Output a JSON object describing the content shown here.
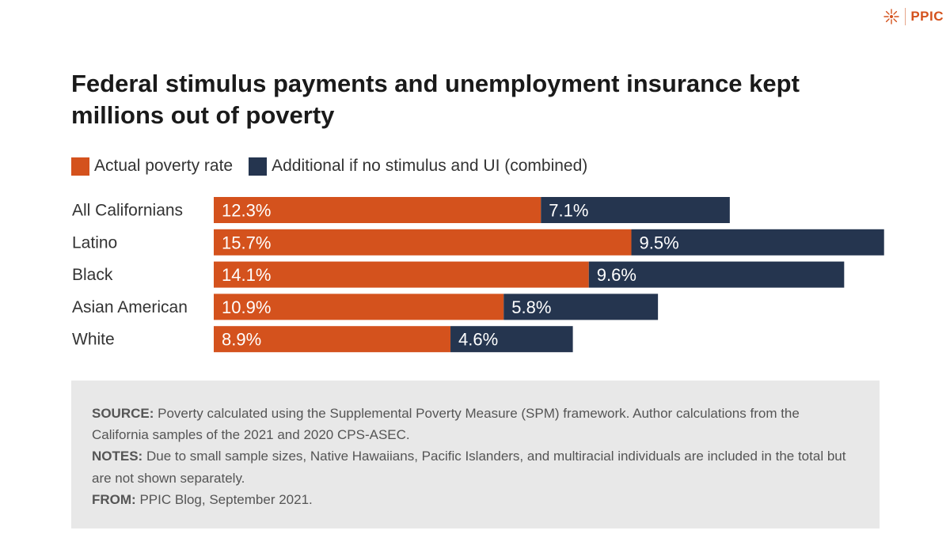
{
  "brand": {
    "name": "PPIC",
    "color": "#d4521d"
  },
  "title": "Federal stimulus payments and unemployment insurance kept millions out of poverty",
  "legend": {
    "actual": {
      "label": "Actual poverty rate",
      "color": "#d4521d"
    },
    "additional": {
      "label": "Additional if no stimulus and UI (combined)",
      "color": "#25354f"
    }
  },
  "chart_data": {
    "type": "bar",
    "orientation": "horizontal",
    "stacked": true,
    "categories": [
      "All Californians",
      "Latino",
      "Black",
      "Asian American",
      "White"
    ],
    "series": [
      {
        "name": "Actual poverty rate",
        "values": [
          12.3,
          15.7,
          14.1,
          10.9,
          8.9
        ],
        "labels": [
          "12.3%",
          "15.7%",
          "14.1%",
          "10.9%",
          "8.9%"
        ],
        "color": "#d4521d"
      },
      {
        "name": "Additional if no stimulus and UI (combined)",
        "values": [
          7.1,
          9.5,
          9.6,
          5.8,
          4.6
        ],
        "labels": [
          "7.1%",
          "9.5%",
          "9.6%",
          "5.8%",
          "4.6%"
        ],
        "color": "#25354f"
      }
    ],
    "title": "Federal stimulus payments and unemployment insurance kept millions out of poverty",
    "xlabel": "",
    "ylabel": "",
    "grid": false,
    "legend_position": "top-left"
  },
  "source_box": {
    "source_label": "SOURCE:",
    "source_text": "Poverty calculated using the Supplemental Poverty Measure (SPM) framework. Author calculations from the California samples of the 2021 and 2020 CPS-ASEC.",
    "notes_label": "NOTES:",
    "notes_text": "Due to small sample sizes, Native Hawaiians, Pacific Islanders, and multiracial individuals are included in the total but are not shown separately.",
    "from_label": "FROM:",
    "from_text": "PPIC Blog, September 2021."
  }
}
